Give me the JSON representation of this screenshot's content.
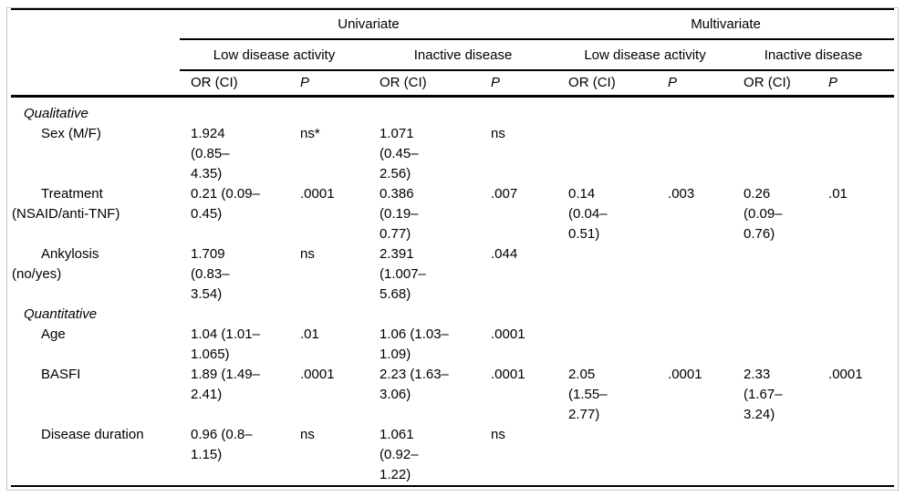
{
  "table": {
    "top_groups": {
      "univariate": "Univariate",
      "multivariate": "Multivariate"
    },
    "sub_groups": {
      "uni_low": "Low disease activity",
      "uni_inactive": "Inactive disease",
      "multi_low": "Low disease activity",
      "multi_inactive": "Inactive disease"
    },
    "col_headers": {
      "or": "OR (CI)",
      "p": "P"
    },
    "rows": [
      {
        "type": "section",
        "label": "Qualitative"
      },
      {
        "type": "data",
        "label": "Sex (M/F)",
        "cells": [
          "1.924\n(0.85–\n4.35)",
          "ns*",
          "1.071\n(0.45–\n2.56)",
          "ns",
          "",
          "",
          "",
          ""
        ]
      },
      {
        "type": "data",
        "label": "Treatment\n(NSAID/anti-TNF)",
        "cells": [
          "0.21 (0.09–\n0.45)",
          ".0001",
          "0.386\n(0.19–\n0.77)",
          ".007",
          "0.14\n(0.04–\n0.51)",
          ".003",
          "0.26\n(0.09–\n0.76)",
          ".01"
        ]
      },
      {
        "type": "data",
        "label": "Ankylosis\n(no/yes)",
        "cells": [
          "1.709\n(0.83–\n3.54)",
          "ns",
          "2.391\n(1.007–\n5.68)",
          ".044",
          "",
          "",
          "",
          ""
        ]
      },
      {
        "type": "section",
        "label": "Quantitative"
      },
      {
        "type": "data",
        "label": "Age",
        "cells": [
          "1.04 (1.01–\n1.065)",
          ".01",
          "1.06 (1.03–\n1.09)",
          ".0001",
          "",
          "",
          "",
          ""
        ]
      },
      {
        "type": "data",
        "label": "BASFI",
        "cells": [
          "1.89 (1.49–\n2.41)",
          ".0001",
          "2.23 (1.63–\n3.06)",
          ".0001",
          "2.05\n(1.55–\n2.77)",
          ".0001",
          "2.33\n(1.67–\n3.24)",
          ".0001"
        ]
      },
      {
        "type": "data",
        "label": "Disease duration",
        "cells": [
          "0.96 (0.8–\n1.15)",
          "ns",
          "1.061\n(0.92–\n1.22)",
          "ns",
          "",
          "",
          "",
          ""
        ]
      }
    ]
  }
}
